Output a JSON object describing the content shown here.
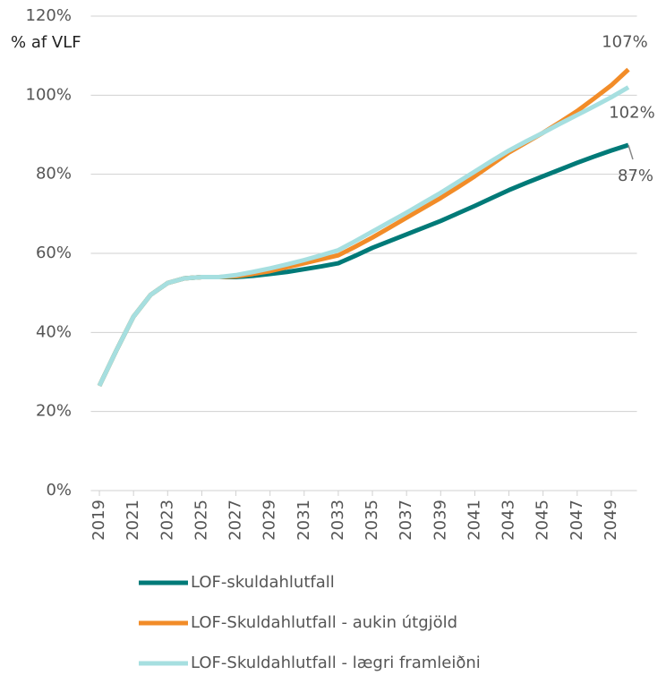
{
  "chart_data": {
    "type": "line",
    "ylabel": "% af VLF",
    "x": [
      2019,
      2020,
      2021,
      2022,
      2023,
      2024,
      2025,
      2026,
      2027,
      2028,
      2029,
      2030,
      2031,
      2032,
      2033,
      2034,
      2035,
      2036,
      2037,
      2038,
      2039,
      2040,
      2041,
      2042,
      2043,
      2044,
      2045,
      2046,
      2047,
      2048,
      2049,
      2050
    ],
    "xlim": [
      2018.5,
      2050.5
    ],
    "xticks": [
      2019,
      2021,
      2023,
      2025,
      2027,
      2029,
      2031,
      2033,
      2035,
      2037,
      2039,
      2041,
      2043,
      2045,
      2047,
      2049
    ],
    "ylim": [
      0,
      120
    ],
    "yticks": [
      {
        "value": 0,
        "label": "0%"
      },
      {
        "value": 20,
        "label": "20%"
      },
      {
        "value": 40,
        "label": "40%"
      },
      {
        "value": 60,
        "label": "60%"
      },
      {
        "value": 80,
        "label": "80%"
      },
      {
        "value": 100,
        "label": "100%"
      },
      {
        "value": 120,
        "label": "120%"
      }
    ],
    "grid": true,
    "series": [
      {
        "name": "LOF-skuldahlutfall",
        "color": "#007a78",
        "values": [
          26.5,
          35.5,
          44,
          49.5,
          52.5,
          53.7,
          54,
          54,
          54,
          54.3,
          54.8,
          55.3,
          56,
          56.7,
          57.5,
          59.4,
          61.4,
          63.1,
          64.8,
          66.5,
          68.2,
          70.1,
          72,
          74,
          76,
          77.8,
          79.5,
          81.2,
          82.9,
          84.5,
          86,
          87.4
        ],
        "value_labels": [
          null,
          null,
          null,
          null,
          null,
          null,
          null,
          null,
          null,
          null,
          null,
          null,
          null,
          null,
          null,
          null,
          null,
          null,
          null,
          null,
          null,
          null,
          null,
          null,
          null,
          null,
          null,
          null,
          null,
          null,
          null,
          "87%"
        ]
      },
      {
        "name": "LOF-Skuldahlutfall - aukin útgjöld",
        "color": "#f28c28",
        "values": [
          26.5,
          35.5,
          44,
          49.5,
          52.5,
          53.7,
          54,
          54,
          54.2,
          54.8,
          55.5,
          56.5,
          57.5,
          58.5,
          59.5,
          61.7,
          64,
          66.5,
          69,
          71.5,
          74,
          76.7,
          79.5,
          82.5,
          85.5,
          88,
          90.5,
          93.2,
          96,
          99.2,
          102.5,
          106.5
        ],
        "value_labels": [
          null,
          null,
          null,
          null,
          null,
          null,
          null,
          null,
          null,
          null,
          null,
          null,
          null,
          null,
          null,
          null,
          null,
          null,
          null,
          null,
          null,
          null,
          null,
          null,
          null,
          null,
          null,
          null,
          null,
          null,
          null,
          "107%"
        ]
      },
      {
        "name": "LOF-Skuldahlutfall - lægri framleiðni",
        "color": "#a6dfe0",
        "values": [
          26.5,
          35.5,
          44,
          49.5,
          52.5,
          53.7,
          54,
          54,
          54.5,
          55.3,
          56.2,
          57.2,
          58.3,
          59.5,
          60.8,
          63.1,
          65.5,
          67.9,
          70.3,
          72.8,
          75.3,
          78,
          80.7,
          83.4,
          86,
          88.3,
          90.5,
          92.8,
          95,
          97.2,
          99.5,
          102
        ],
        "value_labels": [
          null,
          null,
          null,
          null,
          null,
          null,
          null,
          null,
          null,
          null,
          null,
          null,
          null,
          null,
          null,
          null,
          null,
          null,
          null,
          null,
          null,
          null,
          null,
          null,
          null,
          null,
          null,
          null,
          null,
          null,
          null,
          "102%"
        ]
      }
    ]
  }
}
